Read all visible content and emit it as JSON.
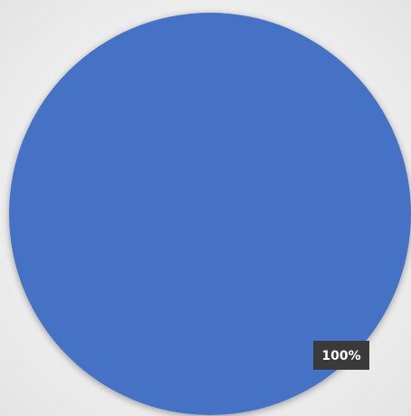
{
  "chart_data": {
    "type": "pie",
    "categories": [
      ""
    ],
    "values": [
      100
    ],
    "data_labels": [
      "100%"
    ],
    "colors": [
      "#4472c4"
    ],
    "label_background": "#3a3a3a",
    "legend": "none",
    "title": ""
  }
}
